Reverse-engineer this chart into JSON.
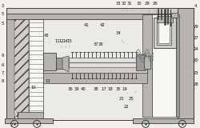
{
  "fig_width": 2.5,
  "fig_height": 1.6,
  "dpi": 100,
  "bg": "#f2efea",
  "c0": "#3a3a3a",
  "c1": "#6a6a6a",
  "c2": "#9a9a9a",
  "c3": "#b8b4ae",
  "c4": "#d0ccc6",
  "c5": "#e2deda",
  "c6": "#eceae6",
  "white": "#f8f6f2",
  "hatch_fc": "#c8c4be"
}
